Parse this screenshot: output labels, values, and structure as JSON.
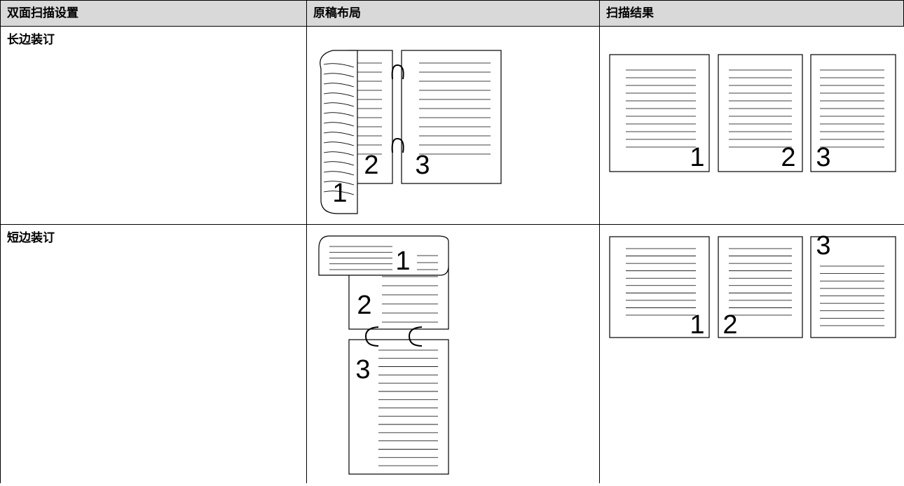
{
  "table": {
    "headers": [
      "双面扫描设置",
      "原稿布局",
      "扫描结果"
    ],
    "rows": [
      [
        "长边装订"
      ],
      [
        "短边装订"
      ]
    ]
  },
  "page_numbers": [
    "1",
    "2",
    "3"
  ]
}
